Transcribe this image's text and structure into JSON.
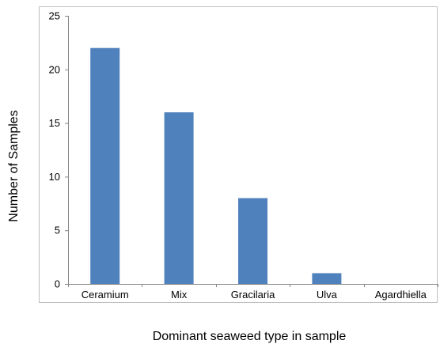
{
  "chart_data": {
    "type": "bar",
    "title": "",
    "xlabel": "Dominant seaweed type in sample",
    "ylabel": "Number of Samples",
    "categories": [
      "Ceramium",
      "Mix",
      "Gracilaria",
      "Ulva",
      "Agardhiella"
    ],
    "values": [
      22,
      16,
      8,
      1,
      0
    ],
    "ylim": [
      0,
      25
    ],
    "yticks": [
      "0",
      "5",
      "10",
      "15",
      "20",
      "25"
    ],
    "grid": false,
    "legend": "none",
    "bar_color": "#4F81BD",
    "axis_color": "#868686",
    "frame_color": "#bfbfbf"
  }
}
